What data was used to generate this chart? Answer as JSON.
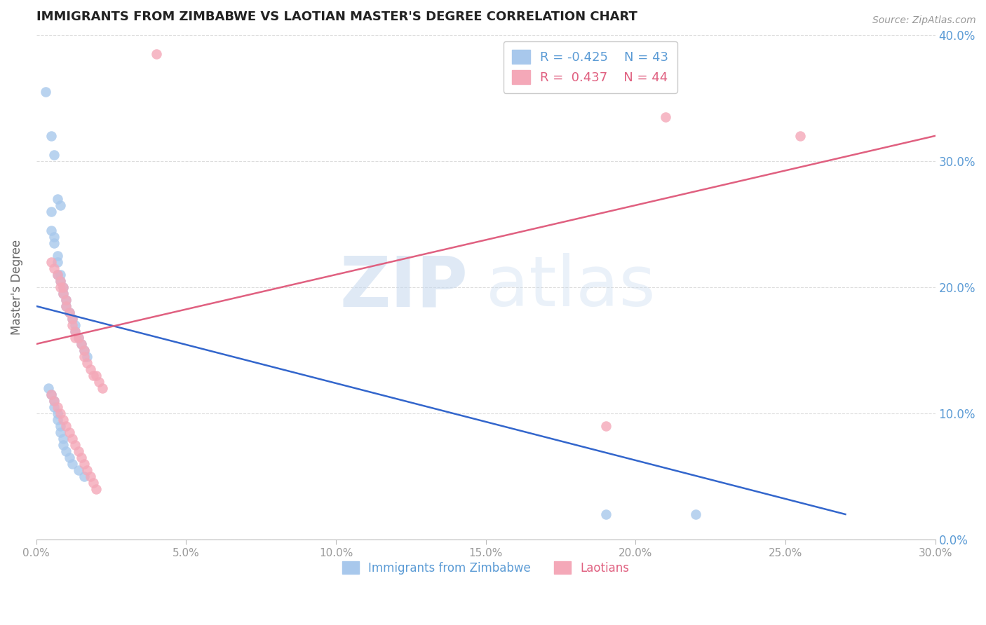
{
  "title": "IMMIGRANTS FROM ZIMBABWE VS LAOTIAN MASTER'S DEGREE CORRELATION CHART",
  "source": "Source: ZipAtlas.com",
  "ylabel": "Master's Degree",
  "ylabel_right_ticks": [
    0.0,
    10.0,
    20.0,
    30.0,
    40.0
  ],
  "xlim": [
    0.0,
    0.3
  ],
  "ylim": [
    0.0,
    0.4
  ],
  "blue_color": "#A8C8EC",
  "pink_color": "#F4A8B8",
  "blue_line_color": "#3366CC",
  "pink_line_color": "#E06080",
  "legend_blue_r": "-0.425",
  "legend_blue_n": "43",
  "legend_pink_r": "0.437",
  "legend_pink_n": "44",
  "legend_label_blue": "Immigrants from Zimbabwe",
  "legend_label_pink": "Laotians",
  "title_color": "#222222",
  "right_tick_color": "#5B9BD5",
  "tick_label_color": "#999999",
  "grid_color": "#DDDDDD",
  "blue_scatter_x": [
    0.003,
    0.005,
    0.006,
    0.007,
    0.008,
    0.005,
    0.005,
    0.006,
    0.006,
    0.007,
    0.007,
    0.007,
    0.008,
    0.008,
    0.009,
    0.009,
    0.01,
    0.01,
    0.011,
    0.012,
    0.013,
    0.013,
    0.014,
    0.015,
    0.016,
    0.017,
    0.004,
    0.005,
    0.006,
    0.006,
    0.007,
    0.007,
    0.008,
    0.008,
    0.009,
    0.009,
    0.01,
    0.011,
    0.012,
    0.014,
    0.016,
    0.19,
    0.22
  ],
  "blue_scatter_y": [
    0.355,
    0.32,
    0.305,
    0.27,
    0.265,
    0.26,
    0.245,
    0.24,
    0.235,
    0.225,
    0.22,
    0.21,
    0.21,
    0.205,
    0.2,
    0.195,
    0.19,
    0.185,
    0.18,
    0.175,
    0.17,
    0.165,
    0.16,
    0.155,
    0.15,
    0.145,
    0.12,
    0.115,
    0.11,
    0.105,
    0.1,
    0.095,
    0.09,
    0.085,
    0.08,
    0.075,
    0.07,
    0.065,
    0.06,
    0.055,
    0.05,
    0.02,
    0.02
  ],
  "pink_scatter_x": [
    0.04,
    0.005,
    0.006,
    0.007,
    0.008,
    0.008,
    0.009,
    0.009,
    0.01,
    0.01,
    0.011,
    0.012,
    0.012,
    0.013,
    0.013,
    0.014,
    0.015,
    0.016,
    0.016,
    0.017,
    0.018,
    0.019,
    0.02,
    0.021,
    0.022,
    0.005,
    0.006,
    0.007,
    0.008,
    0.009,
    0.01,
    0.011,
    0.012,
    0.013,
    0.014,
    0.015,
    0.016,
    0.017,
    0.018,
    0.019,
    0.02,
    0.21,
    0.255,
    0.19
  ],
  "pink_scatter_y": [
    0.385,
    0.22,
    0.215,
    0.21,
    0.205,
    0.2,
    0.2,
    0.195,
    0.19,
    0.185,
    0.18,
    0.175,
    0.17,
    0.165,
    0.16,
    0.16,
    0.155,
    0.15,
    0.145,
    0.14,
    0.135,
    0.13,
    0.13,
    0.125,
    0.12,
    0.115,
    0.11,
    0.105,
    0.1,
    0.095,
    0.09,
    0.085,
    0.08,
    0.075,
    0.07,
    0.065,
    0.06,
    0.055,
    0.05,
    0.045,
    0.04,
    0.335,
    0.32,
    0.09
  ],
  "blue_line_x0": 0.0,
  "blue_line_y0": 0.185,
  "blue_line_x1": 0.27,
  "blue_line_y1": 0.02,
  "pink_line_x0": 0.0,
  "pink_line_y0": 0.155,
  "pink_line_x1": 0.3,
  "pink_line_y1": 0.32
}
